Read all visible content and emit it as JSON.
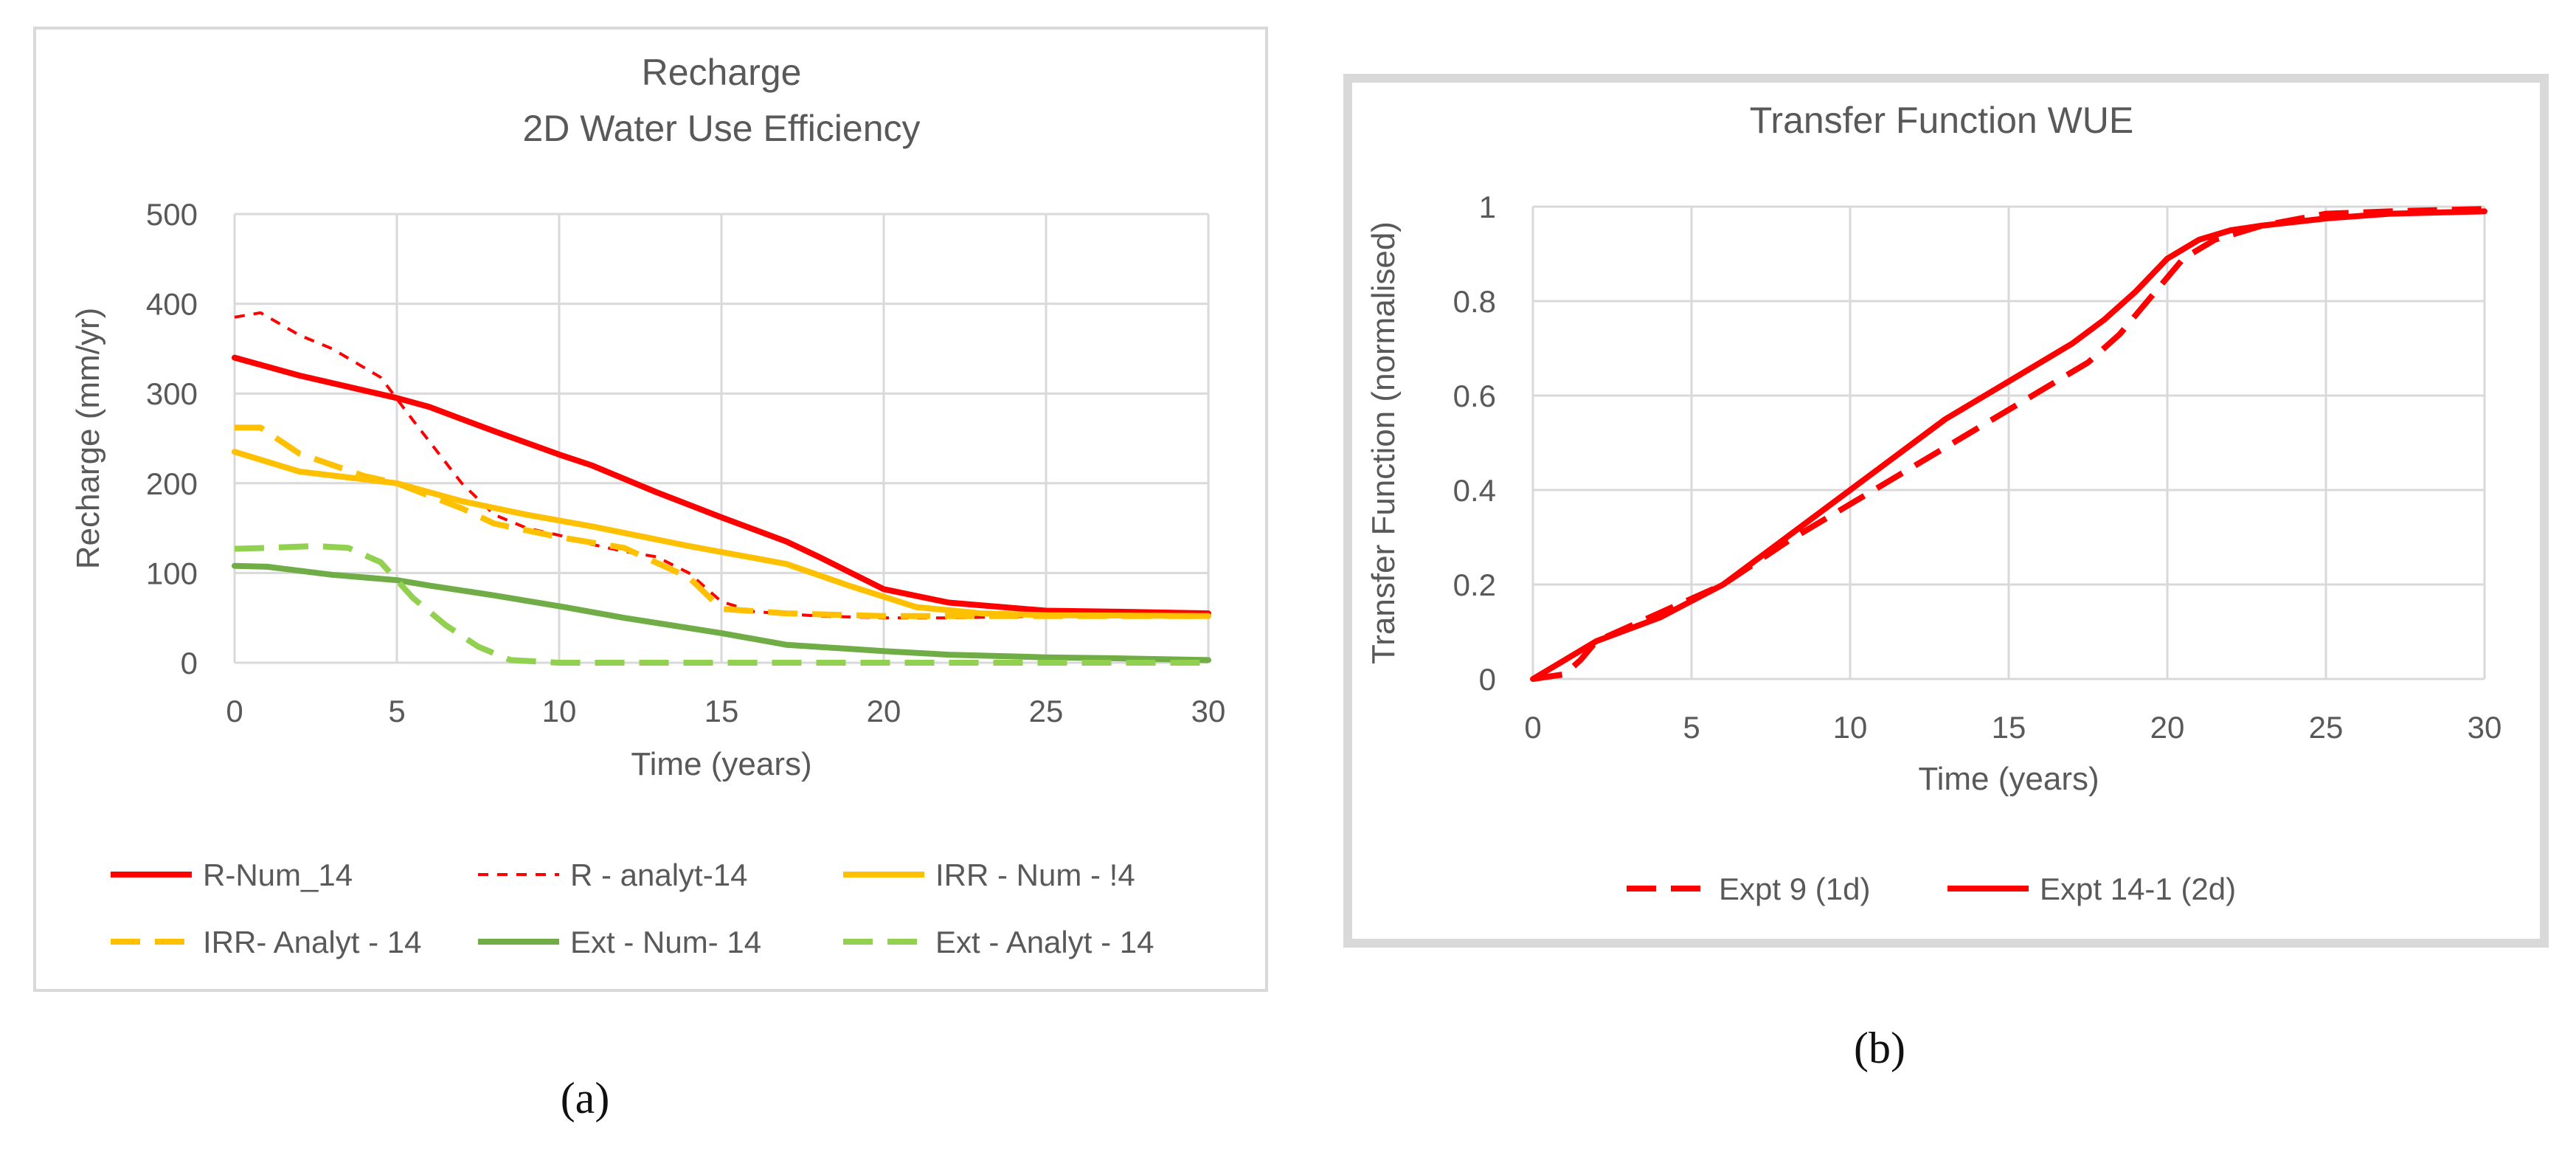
{
  "chart_data": [
    {
      "id": "a",
      "type": "line",
      "title": [
        "Recharge",
        "2D Water Use Efficiency"
      ],
      "xlabel": "Time (years)",
      "ylabel": "Recharge (mm/yr)",
      "xlim": [
        0,
        30
      ],
      "ylim": [
        0,
        500
      ],
      "xticks": [
        "0",
        "5",
        "10",
        "15",
        "20",
        "25",
        "30"
      ],
      "yticks": [
        "0",
        "100",
        "200",
        "300",
        "400",
        "500"
      ],
      "grid": true,
      "legend_position": "bottom",
      "caption": "(a)",
      "series": [
        {
          "name": "R-Num_14",
          "color": "#ff0000",
          "style": "solid",
          "width": 8,
          "x": [
            0,
            2,
            5,
            6,
            8,
            10,
            11,
            13,
            15,
            17,
            18,
            20,
            22,
            25,
            27,
            30
          ],
          "y": [
            340,
            320,
            295,
            285,
            258,
            232,
            220,
            190,
            162,
            135,
            118,
            82,
            67,
            58,
            57,
            55
          ]
        },
        {
          "name": "R - analyt-14",
          "color": "#ff0000",
          "style": "short-dash",
          "width": 4,
          "x": [
            0,
            0.8,
            2,
            3,
            4.5,
            5.5,
            7,
            8,
            9,
            10,
            11,
            12,
            13,
            14,
            15,
            16,
            18,
            20,
            21,
            22,
            25,
            30
          ],
          "y": [
            385,
            390,
            365,
            350,
            318,
            270,
            200,
            165,
            150,
            142,
            132,
            124,
            118,
            100,
            68,
            57,
            52,
            50,
            50,
            50,
            52,
            52
          ]
        },
        {
          "name": "IRR - Num - !4",
          "color": "#ffc000",
          "style": "solid",
          "width": 8,
          "x": [
            0,
            2,
            5,
            7,
            9,
            11,
            14,
            17,
            19,
            21,
            23,
            25,
            30
          ],
          "y": [
            235,
            213,
            200,
            180,
            165,
            152,
            130,
            110,
            85,
            62,
            55,
            53,
            52
          ]
        },
        {
          "name": "IRR- Analyt - 14",
          "color": "#ffc000",
          "style": "long-dash",
          "width": 8,
          "x": [
            0,
            0.8,
            2,
            4,
            5,
            7,
            8,
            10,
            12,
            14,
            15,
            17,
            20,
            22,
            25,
            30
          ],
          "y": [
            262,
            262,
            233,
            208,
            200,
            172,
            155,
            140,
            128,
            95,
            60,
            55,
            52,
            52,
            52,
            52
          ]
        },
        {
          "name": "Ext - Num- 14",
          "color": "#70ad47",
          "style": "solid",
          "width": 8,
          "x": [
            0,
            1,
            3,
            5,
            6,
            8,
            10,
            12,
            15,
            17,
            20,
            22,
            25,
            27,
            30
          ],
          "y": [
            108,
            107,
            98,
            92,
            86,
            75,
            63,
            50,
            33,
            20,
            13,
            9,
            6,
            5,
            3
          ]
        },
        {
          "name": "Ext - Analyt - 14",
          "color": "#92d050",
          "style": "long-dash",
          "width": 8,
          "x": [
            0,
            1,
            2.5,
            3.5,
            4.5,
            5.5,
            6.5,
            7.5,
            8.5,
            10,
            30
          ],
          "y": [
            127,
            128,
            130,
            128,
            112,
            72,
            42,
            18,
            3,
            0,
            0
          ]
        }
      ]
    },
    {
      "id": "b",
      "type": "line",
      "title": [
        "Transfer Function WUE"
      ],
      "xlabel": "Time (years)",
      "ylabel": "Transfer Function (normalised)",
      "xlim": [
        0,
        30
      ],
      "ylim": [
        0,
        1
      ],
      "xticks": [
        "0",
        "5",
        "10",
        "15",
        "20",
        "25",
        "30"
      ],
      "yticks": [
        "0",
        "0.2",
        "0.4",
        "0.6",
        "0.8",
        "1"
      ],
      "grid": true,
      "legend_position": "bottom",
      "caption": "(b)",
      "series": [
        {
          "name": "Expt 9 (1d)",
          "color": "#ff0000",
          "style": "long-dash",
          "width": 8,
          "x": [
            0,
            1,
            1.5,
            2,
            3,
            4,
            5,
            6,
            8,
            10,
            12,
            14,
            16,
            17.5,
            18.5,
            19.5,
            20.5,
            21.5,
            23,
            25,
            27,
            30
          ],
          "y": [
            0,
            0.01,
            0.04,
            0.08,
            0.11,
            0.14,
            0.17,
            0.2,
            0.29,
            0.37,
            0.45,
            0.53,
            0.61,
            0.67,
            0.73,
            0.81,
            0.89,
            0.93,
            0.96,
            0.985,
            0.99,
            0.995
          ]
        },
        {
          "name": "Expt 14-1 (2d)",
          "color": "#ff0000",
          "style": "solid",
          "width": 8,
          "x": [
            0,
            1,
            2,
            4,
            6,
            8,
            10,
            12,
            13,
            15,
            17,
            18,
            19,
            20,
            21,
            22,
            23,
            25,
            27,
            30
          ],
          "y": [
            0,
            0.04,
            0.08,
            0.13,
            0.2,
            0.3,
            0.4,
            0.5,
            0.55,
            0.63,
            0.71,
            0.76,
            0.82,
            0.89,
            0.93,
            0.95,
            0.96,
            0.975,
            0.985,
            0.99
          ]
        }
      ]
    }
  ]
}
